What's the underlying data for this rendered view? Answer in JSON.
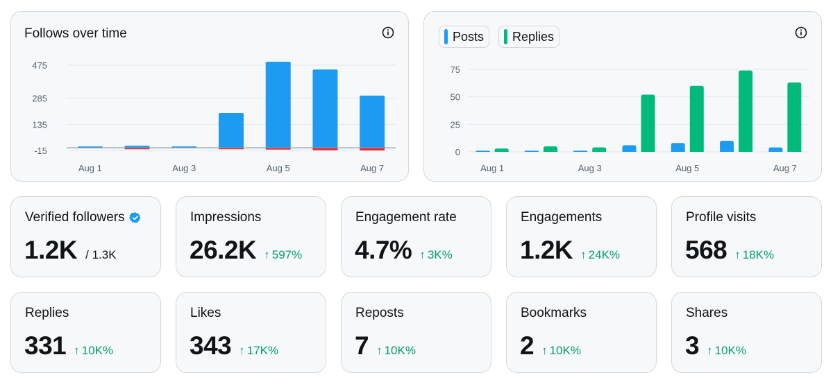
{
  "chart1": {
    "title": "Follows over time",
    "y_ticks": [
      "475",
      "285",
      "135",
      "-15"
    ],
    "x_ticks": [
      "Aug 1",
      "Aug 3",
      "Aug 5",
      "Aug 7"
    ]
  },
  "chart2": {
    "legend": [
      {
        "label": "Posts",
        "color": "#1d9bf0"
      },
      {
        "label": "Replies",
        "color": "#00ba7c"
      }
    ],
    "y_ticks": [
      "75",
      "50",
      "25",
      "0"
    ],
    "x_ticks": [
      "Aug 1",
      "Aug 3",
      "Aug 5",
      "Aug 7"
    ]
  },
  "chart_data": [
    {
      "type": "bar",
      "title": "Follows over time",
      "categories": [
        "Aug 1",
        "Aug 2",
        "Aug 3",
        "Aug 4",
        "Aug 5",
        "Aug 6",
        "Aug 7"
      ],
      "series": [
        {
          "values": [
            2,
            12,
            6,
            200,
            495,
            450,
            300
          ],
          "color": "#1d9bf0"
        },
        {
          "values": [
            0,
            -1,
            0,
            -3,
            -10,
            -14,
            -15
          ],
          "color": "#f4212e"
        }
      ],
      "ylim": [
        -15,
        475
      ],
      "grid": true
    },
    {
      "type": "bar",
      "categories": [
        "Aug 1",
        "Aug 2",
        "Aug 3",
        "Aug 4",
        "Aug 5",
        "Aug 6",
        "Aug 7"
      ],
      "series": [
        {
          "name": "Posts",
          "values": [
            1,
            1,
            1,
            6,
            8,
            10,
            4
          ],
          "color": "#1d9bf0"
        },
        {
          "name": "Replies",
          "values": [
            3,
            5,
            4,
            52,
            60,
            74,
            63
          ],
          "color": "#00ba7c"
        }
      ],
      "ylim": [
        0,
        75
      ],
      "grid": true,
      "legend": "top-left"
    }
  ],
  "metrics": [
    {
      "label": "Verified followers",
      "value": "1.2K",
      "sub": "/ 1.3K"
    },
    {
      "label": "Impressions",
      "value": "26.2K",
      "change": "597%"
    },
    {
      "label": "Engagement rate",
      "value": "4.7%",
      "change": "3K%"
    },
    {
      "label": "Engagements",
      "value": "1.2K",
      "change": "24K%"
    },
    {
      "label": "Profile visits",
      "value": "568",
      "change": "18K%"
    },
    {
      "label": "Replies",
      "value": "331",
      "change": "10K%"
    },
    {
      "label": "Likes",
      "value": "343",
      "change": "17K%"
    },
    {
      "label": "Reposts",
      "value": "7",
      "change": "10K%"
    },
    {
      "label": "Bookmarks",
      "value": "2",
      "change": "10K%"
    },
    {
      "label": "Shares",
      "value": "3",
      "change": "10K%"
    }
  ],
  "icons": {
    "info": "info-circle-icon",
    "verified": "verified-badge-icon",
    "change": "arrow-up-icon"
  }
}
